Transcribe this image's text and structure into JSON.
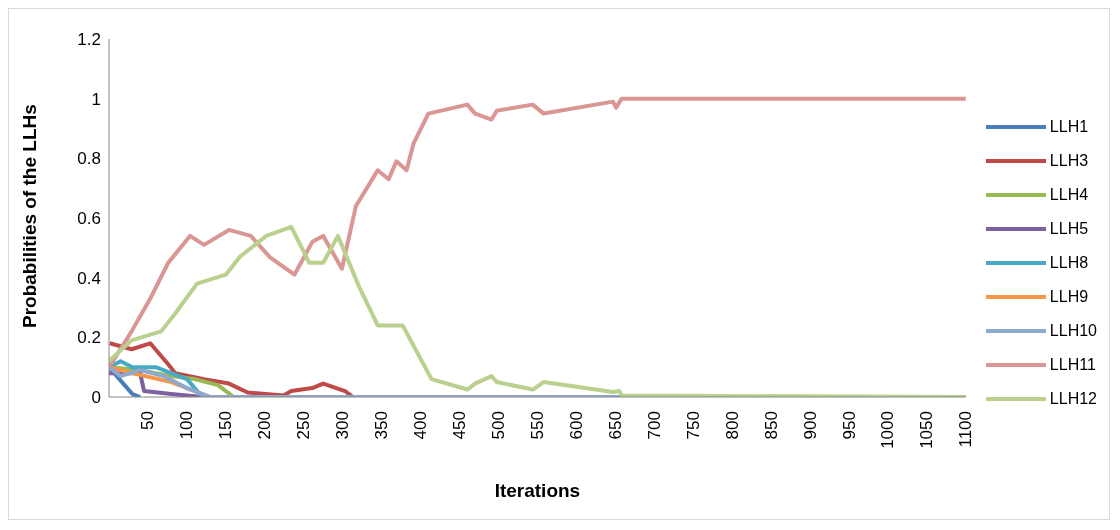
{
  "chart_data": {
    "type": "line",
    "xlabel": "Iterations",
    "ylabel": "Probabilities of the LLHs",
    "xlim": [
      0,
      1100
    ],
    "xticks": [
      50,
      100,
      150,
      200,
      250,
      300,
      350,
      400,
      450,
      500,
      550,
      600,
      650,
      700,
      750,
      800,
      850,
      900,
      950,
      1000,
      1050,
      1100
    ],
    "ylim": [
      0,
      1.2
    ],
    "yticks": [
      0,
      0.2,
      0.4,
      0.6,
      0.8,
      1,
      1.2
    ],
    "grid": false,
    "legend": "right",
    "marker": "none",
    "line_style": "solid",
    "series": [
      {
        "name": "LLH1",
        "color": "#4a7ebb",
        "x": [
          0,
          10,
          20,
          30,
          40
        ],
        "values": [
          0.1,
          0.07,
          0.04,
          0.01,
          0
        ]
      },
      {
        "name": "LLH3",
        "color": "#be4b48",
        "x": [
          1,
          29,
          53,
          76,
          85,
          122,
          154,
          178,
          224,
          234,
          261,
          275,
          303,
          313
        ],
        "values": [
          0.18,
          0.16,
          0.18,
          0.11,
          0.08,
          0.06,
          0.045,
          0.015,
          0.005,
          0.02,
          0.03,
          0.045,
          0.02,
          0
        ]
      },
      {
        "name": "LLH4",
        "color": "#98b954",
        "x": [
          0,
          40,
          80,
          110,
          140,
          160
        ],
        "values": [
          0.1,
          0.09,
          0.07,
          0.06,
          0.04,
          0
        ]
      },
      {
        "name": "LLH5",
        "color": "#7d60a0",
        "x": [
          0,
          40,
          45,
          80,
          120
        ],
        "values": [
          0.08,
          0.08,
          0.02,
          0.01,
          0
        ]
      },
      {
        "name": "LLH8",
        "color": "#46aac5",
        "x": [
          0,
          15,
          30,
          60,
          100,
          120
        ],
        "values": [
          0.1,
          0.12,
          0.1,
          0.1,
          0.06,
          0
        ]
      },
      {
        "name": "LLH9",
        "color": "#f79646",
        "x": [
          0,
          30,
          80,
          130
        ],
        "values": [
          0.1,
          0.08,
          0.05,
          0
        ]
      },
      {
        "name": "LLH10",
        "color": "#8ea9d0",
        "x": [
          0,
          15,
          40,
          70,
          100,
          130,
          1100
        ],
        "values": [
          0.1,
          0.07,
          0.09,
          0.07,
          0.03,
          0,
          0
        ]
      },
      {
        "name": "LLH11",
        "color": "#d99694",
        "x": [
          0,
          29,
          53,
          76,
          104,
          122,
          154,
          182,
          206,
          238,
          261,
          275,
          299,
          317,
          345,
          359,
          369,
          382,
          391,
          410,
          460,
          470,
          491,
          498,
          544,
          558,
          647,
          651,
          658,
          1100
        ],
        "values": [
          0.1,
          0.22,
          0.33,
          0.45,
          0.54,
          0.51,
          0.56,
          0.54,
          0.47,
          0.41,
          0.52,
          0.54,
          0.43,
          0.64,
          0.76,
          0.73,
          0.79,
          0.76,
          0.85,
          0.95,
          0.98,
          0.95,
          0.93,
          0.96,
          0.98,
          0.95,
          0.99,
          0.97,
          1,
          1
        ]
      },
      {
        "name": "LLH12",
        "color": "#b9d08f",
        "x": [
          0,
          29,
          67,
          85,
          113,
          150,
          168,
          202,
          234,
          257,
          275,
          294,
          321,
          345,
          377,
          414,
          460,
          470,
          491,
          498,
          544,
          558,
          647,
          655,
          658,
          1100
        ],
        "values": [
          0.12,
          0.19,
          0.22,
          0.28,
          0.38,
          0.41,
          0.47,
          0.54,
          0.57,
          0.45,
          0.45,
          0.54,
          0.37,
          0.24,
          0.24,
          0.06,
          0.025,
          0.045,
          0.07,
          0.05,
          0.025,
          0.05,
          0.017,
          0.02,
          0.005,
          0
        ]
      }
    ]
  }
}
